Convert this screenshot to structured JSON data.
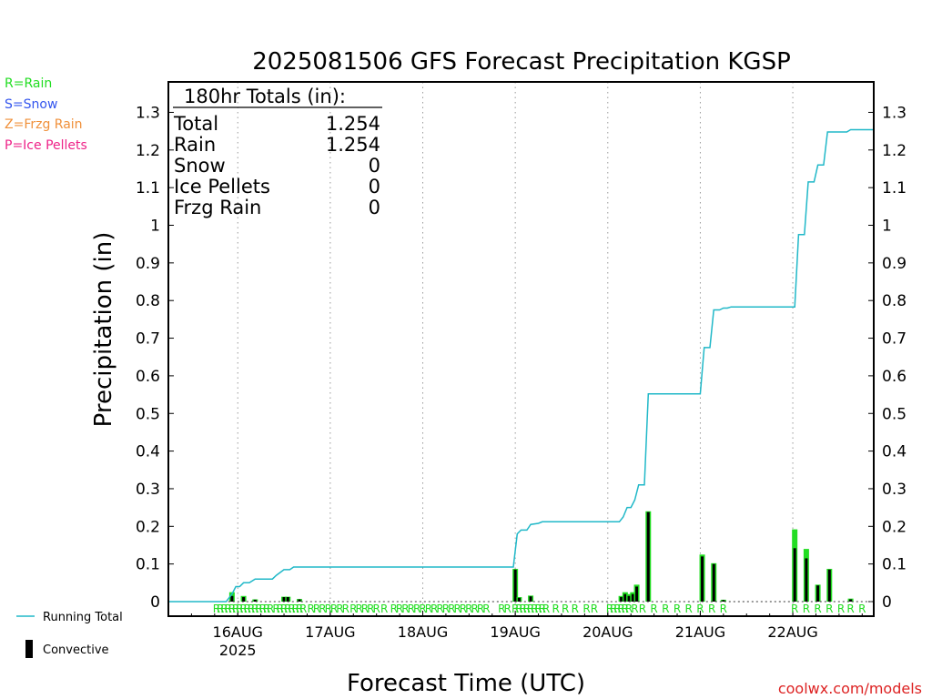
{
  "header": {
    "title": "2025081506 GFS Forecast Precipitation KGSP",
    "credit": "coolwx.com/models"
  },
  "legend": {
    "rain": "R=Rain",
    "snow": "S=Snow",
    "frzg_rain": "Z=Frzg Rain",
    "ice_pellets": "P=Ice Pellets",
    "running_total": "Running Total",
    "convective": "Convective"
  },
  "totals_box": {
    "heading": "180hr Totals (in):",
    "rows": [
      {
        "label": "Total",
        "value": "1.254"
      },
      {
        "label": "Rain",
        "value": "1.254"
      },
      {
        "label": "Snow",
        "value": "0"
      },
      {
        "label": "Ice Pellets",
        "value": "0"
      },
      {
        "label": "Frzg Rain",
        "value": "0"
      }
    ]
  },
  "colors": {
    "running_total": "#20b8c8",
    "rain": "#22dd22",
    "snow": "#3355ee",
    "frzg_rain": "#f0903a",
    "ice_pellets": "#ee2288",
    "convective": "#000000",
    "credit": "#dd2222"
  },
  "chart_data": {
    "type": "bar",
    "title": "2025081506 GFS Forecast Precipitation KGSP",
    "xlabel": "Forecast Time (UTC)",
    "ylabel": "Precipitation (in)",
    "ylim": [
      0,
      1.35
    ],
    "y_ticks": [
      0,
      0.1,
      0.2,
      0.3,
      0.4,
      0.5,
      0.6,
      0.7,
      0.8,
      0.9,
      1,
      1.1,
      1.2,
      1.3
    ],
    "y_tick_labels": [
      "0",
      "0.1",
      "0.2",
      "0.3",
      "0.4",
      "0.5",
      "0.6",
      "0.7",
      "0.8",
      "0.9",
      "1",
      "1.1",
      "1.2",
      "1.3"
    ],
    "x_axis": {
      "unit": "forecast hour",
      "range": [
        0,
        183
      ],
      "date_ticks": [
        {
          "hour": 18,
          "label": "16AUG",
          "sublabel": "2025"
        },
        {
          "hour": 42,
          "label": "17AUG"
        },
        {
          "hour": 66,
          "label": "18AUG"
        },
        {
          "hour": 90,
          "label": "19AUG"
        },
        {
          "hour": 114,
          "label": "20AUG"
        },
        {
          "hour": 138,
          "label": "21AUG"
        },
        {
          "hour": 162,
          "label": "22AUG"
        }
      ],
      "grid": "dotted vertical at date ticks"
    },
    "series": [
      {
        "name": "Running Total",
        "type": "line",
        "points": [
          [
            0,
            0
          ],
          [
            15,
            0
          ],
          [
            16.5,
            0.02
          ],
          [
            17.5,
            0.04
          ],
          [
            18.5,
            0.04
          ],
          [
            19.5,
            0.05
          ],
          [
            21,
            0.05
          ],
          [
            22.5,
            0.06
          ],
          [
            27,
            0.06
          ],
          [
            28,
            0.07
          ],
          [
            30,
            0.085
          ],
          [
            31.5,
            0.085
          ],
          [
            32.5,
            0.092
          ],
          [
            89.5,
            0.092
          ],
          [
            90.5,
            0.18
          ],
          [
            91.5,
            0.19
          ],
          [
            93,
            0.19
          ],
          [
            94,
            0.205
          ],
          [
            96,
            0.208
          ],
          [
            97,
            0.212
          ],
          [
            117,
            0.212
          ],
          [
            118,
            0.225
          ],
          [
            119,
            0.25
          ],
          [
            120,
            0.25
          ],
          [
            121,
            0.27
          ],
          [
            122,
            0.31
          ],
          [
            123.5,
            0.31
          ],
          [
            124.5,
            0.552
          ],
          [
            138,
            0.552
          ],
          [
            139,
            0.675
          ],
          [
            140.5,
            0.675
          ],
          [
            141.5,
            0.775
          ],
          [
            143,
            0.775
          ],
          [
            144,
            0.78
          ],
          [
            145,
            0.78
          ],
          [
            146,
            0.783
          ],
          [
            162.5,
            0.783
          ],
          [
            163.5,
            0.975
          ],
          [
            165,
            0.975
          ],
          [
            166,
            1.115
          ],
          [
            167.5,
            1.115
          ],
          [
            168.5,
            1.16
          ],
          [
            170,
            1.16
          ],
          [
            171,
            1.248
          ],
          [
            176,
            1.248
          ],
          [
            177,
            1.254
          ],
          [
            183,
            1.254
          ]
        ]
      },
      {
        "name": "Convective",
        "type": "bar",
        "note": "total bar height = 3-hr precipitation; dark core = convective portion",
        "bars": [
          {
            "hour": 16.5,
            "total": 0.025,
            "convective": 0.015
          },
          {
            "hour": 19.5,
            "total": 0.015,
            "convective": 0.012
          },
          {
            "hour": 22.5,
            "total": 0.006,
            "convective": 0.005
          },
          {
            "hour": 30,
            "total": 0.013,
            "convective": 0.012
          },
          {
            "hour": 31,
            "total": 0.013,
            "convective": 0.012
          },
          {
            "hour": 34,
            "total": 0.007,
            "convective": 0.006
          },
          {
            "hour": 90,
            "total": 0.087,
            "convective": 0.085
          },
          {
            "hour": 91,
            "total": 0.012,
            "convective": 0.01
          },
          {
            "hour": 94,
            "total": 0.016,
            "convective": 0.014
          },
          {
            "hour": 117.5,
            "total": 0.015,
            "convective": 0.012
          },
          {
            "hour": 118.5,
            "total": 0.025,
            "convective": 0.02
          },
          {
            "hour": 119.5,
            "total": 0.02,
            "convective": 0.015
          },
          {
            "hour": 120.5,
            "total": 0.025,
            "convective": 0.02
          },
          {
            "hour": 121.5,
            "total": 0.045,
            "convective": 0.04
          },
          {
            "hour": 124.5,
            "total": 0.24,
            "convective": 0.238
          },
          {
            "hour": 138.5,
            "total": 0.125,
            "convective": 0.12
          },
          {
            "hour": 141.5,
            "total": 0.102,
            "convective": 0.1
          },
          {
            "hour": 144,
            "total": 0.005,
            "convective": 0.004
          },
          {
            "hour": 162.5,
            "total": 0.192,
            "convective": 0.142
          },
          {
            "hour": 165.5,
            "total": 0.14,
            "convective": 0.115
          },
          {
            "hour": 168.5,
            "total": 0.045,
            "convective": 0.043
          },
          {
            "hour": 171.5,
            "total": 0.087,
            "convective": 0.085
          },
          {
            "hour": 177,
            "total": 0.008,
            "convective": 0.006
          }
        ]
      }
    ],
    "precip_type_markers": {
      "letter": "R",
      "hours": [
        12.5,
        13.5,
        14.5,
        15.5,
        16.5,
        17.5,
        18.5,
        19.5,
        20.5,
        21.5,
        22.5,
        23.5,
        24.5,
        25.5,
        26.5,
        28,
        29,
        30,
        31,
        32,
        33,
        34,
        35,
        37,
        38.5,
        40,
        41.5,
        43,
        44.5,
        46,
        48,
        49.5,
        51,
        52.5,
        54,
        56,
        58.5,
        60,
        61.5,
        63,
        64.5,
        66,
        67.5,
        69,
        70.5,
        72,
        73.5,
        75,
        76.5,
        78,
        79.5,
        81,
        82.5,
        86.5,
        88,
        90,
        91,
        92,
        93,
        94,
        95,
        96,
        97,
        98,
        100.5,
        103,
        105.5,
        108.5,
        110.5,
        114.5,
        115.5,
        116.5,
        117.5,
        118.5,
        119.5,
        121,
        123,
        126,
        129,
        132,
        135,
        138,
        141,
        144,
        162.5,
        165.5,
        168.5,
        171.5,
        174.5,
        177,
        180
      ]
    },
    "legend_placement": "left of plot"
  }
}
